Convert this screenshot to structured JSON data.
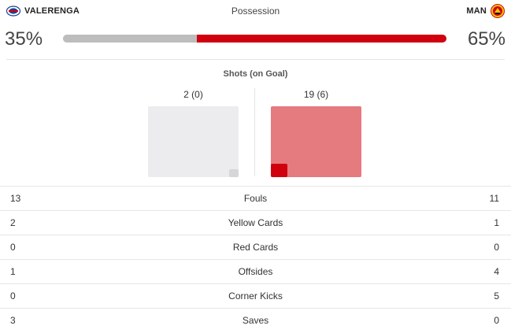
{
  "header": {
    "home_team": "VALERENGA",
    "away_team": "MAN",
    "title": "Possession",
    "home_logo_icon": "valerenga-crest-icon",
    "away_logo_icon": "manchester-united-crest-icon"
  },
  "possession": {
    "home_pct": "35%",
    "away_pct": "65%",
    "home_value": 35,
    "away_value": 65,
    "home_color": "#bdbdbd",
    "away_color": "#d1000f"
  },
  "shots": {
    "title": "Shots (on Goal)",
    "home_label": "2 (0)",
    "away_label": "19 (6)",
    "home_total": 2,
    "home_on_goal": 0,
    "away_total": 19,
    "away_on_goal": 6
  },
  "stats": [
    {
      "home": "13",
      "label": "Fouls",
      "away": "11"
    },
    {
      "home": "2",
      "label": "Yellow Cards",
      "away": "1"
    },
    {
      "home": "0",
      "label": "Red Cards",
      "away": "0"
    },
    {
      "home": "1",
      "label": "Offsides",
      "away": "4"
    },
    {
      "home": "0",
      "label": "Corner Kicks",
      "away": "5"
    },
    {
      "home": "3",
      "label": "Saves",
      "away": "0"
    }
  ]
}
